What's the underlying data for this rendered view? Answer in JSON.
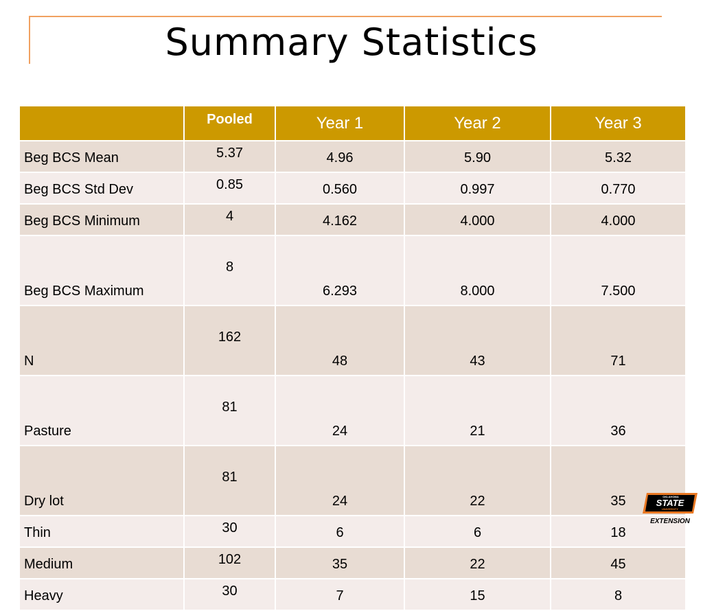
{
  "slide": {
    "title": "Summary Statistics"
  },
  "table": {
    "header": [
      "",
      "Pooled",
      "Year 1",
      "Year 2",
      "Year 3"
    ],
    "rows": [
      {
        "label": "Beg BCS Mean",
        "pooled": "5.37",
        "y1": "4.96",
        "y2": "5.90",
        "y3": "5.32"
      },
      {
        "label": "Beg BCS Std Dev",
        "pooled": "0.85",
        "y1": "0.560",
        "y2": "0.997",
        "y3": "0.770"
      },
      {
        "label": "Beg BCS Minimum",
        "pooled": "4",
        "y1": "4.162",
        "y2": "4.000",
        "y3": "4.000"
      },
      {
        "label": "Beg BCS Maximum",
        "pooled": "8",
        "y1": "6.293",
        "y2": "8.000",
        "y3": "7.500"
      },
      {
        "label": "N",
        "pooled": "162",
        "y1": "48",
        "y2": "43",
        "y3": "71"
      },
      {
        "label": "Pasture",
        "pooled": "81",
        "y1": "24",
        "y2": "21",
        "y3": "36"
      },
      {
        "label": "Dry lot",
        "pooled": "81",
        "y1": "24",
        "y2": "22",
        "y3": "35"
      },
      {
        "label": "Thin",
        "pooled": "30",
        "y1": "6",
        "y2": "6",
        "y3": "18"
      },
      {
        "label": "Medium",
        "pooled": "102",
        "y1": "35",
        "y2": "22",
        "y3": "45"
      },
      {
        "label": "Heavy",
        "pooled": "30",
        "y1": "7",
        "y2": "15",
        "y3": "8"
      }
    ]
  },
  "logo": {
    "top_text": "OKLAHOMA",
    "main_text": "STATE",
    "sub_text": "UNIVERSITY",
    "bottom_text": "EXTENSION",
    "colors": {
      "orange": "#e87722",
      "black": "#000000"
    }
  },
  "colors": {
    "header_bg": "#cc9900",
    "row_odd": "#e8dcd3",
    "row_even": "#f4ecea",
    "frame": "#f0a060"
  }
}
